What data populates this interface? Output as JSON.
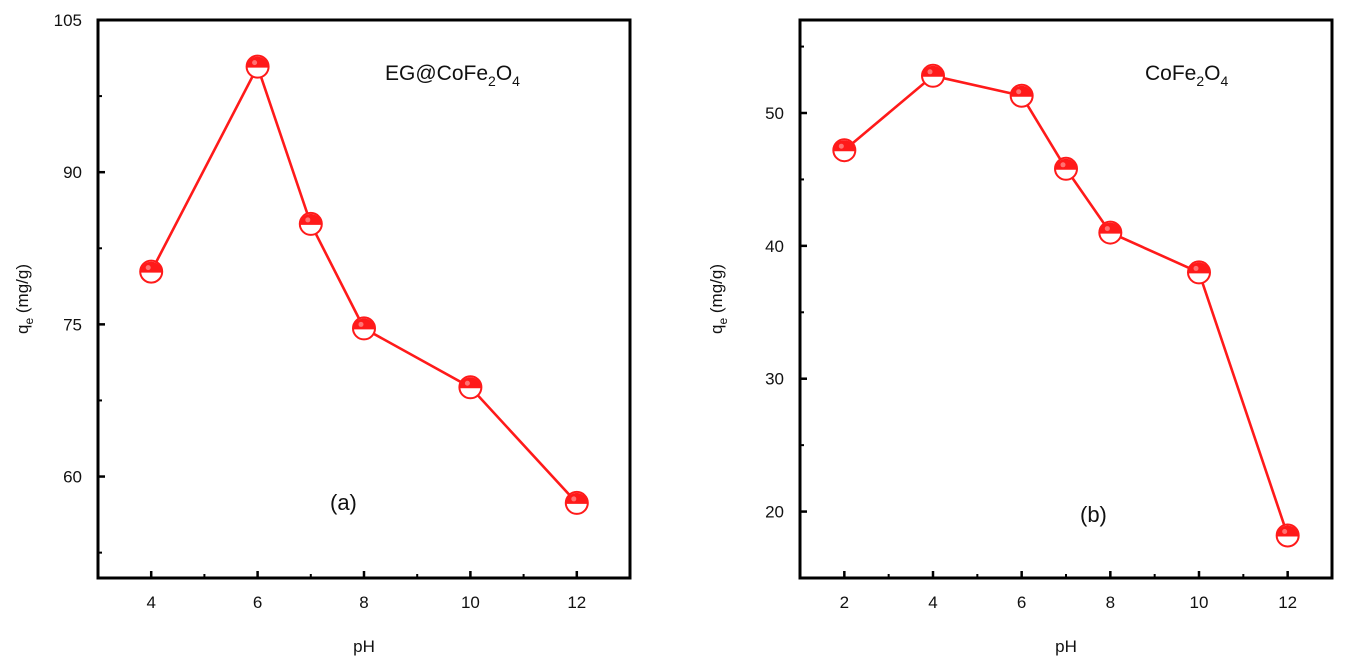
{
  "colors": {
    "series": "#ff1a1a",
    "axis": "#000000",
    "marker_fill_bottom": "#ffffff"
  },
  "chart_data": [
    {
      "type": "line",
      "panel_label": "(a)",
      "annotation": {
        "main": "EG@CoFe",
        "sub1": "2",
        "mid": "O",
        "sub2": "4"
      },
      "xlabel": "pH",
      "ylabel": {
        "main": "q",
        "sub": "e",
        "rest": " (mg/g)"
      },
      "xlim": [
        3,
        13
      ],
      "ylim": [
        50,
        105
      ],
      "xticks": [
        4,
        6,
        8,
        10,
        12
      ],
      "xminor": [
        5,
        7,
        9,
        11
      ],
      "yticks": [
        60,
        75,
        90,
        105
      ],
      "yminor": [
        52.5,
        67.5,
        82.5,
        97.5
      ],
      "grid": false,
      "series": [
        {
          "x": [
            4,
            6,
            7,
            8,
            10,
            12
          ],
          "y": [
            80.2,
            100.4,
            84.9,
            74.6,
            68.8,
            57.4
          ]
        }
      ]
    },
    {
      "type": "line",
      "panel_label": "(b)",
      "annotation": {
        "main": "CoFe",
        "sub1": "2",
        "mid": "O",
        "sub2": "4"
      },
      "xlabel": "pH",
      "ylabel": {
        "main": "q",
        "sub": "e",
        "rest": " (mg/g)"
      },
      "xlim": [
        1,
        13
      ],
      "ylim": [
        15,
        57
      ],
      "xticks": [
        2,
        4,
        6,
        8,
        10,
        12
      ],
      "xminor": [
        3,
        5,
        7,
        9,
        11
      ],
      "yticks": [
        20,
        30,
        40,
        50
      ],
      "yminor": [
        25,
        35,
        45,
        55
      ],
      "grid": false,
      "series": [
        {
          "x": [
            2,
            4,
            6,
            7,
            8,
            10,
            12
          ],
          "y": [
            47.2,
            52.8,
            51.3,
            45.8,
            41.0,
            38.0,
            18.2
          ]
        }
      ]
    }
  ]
}
